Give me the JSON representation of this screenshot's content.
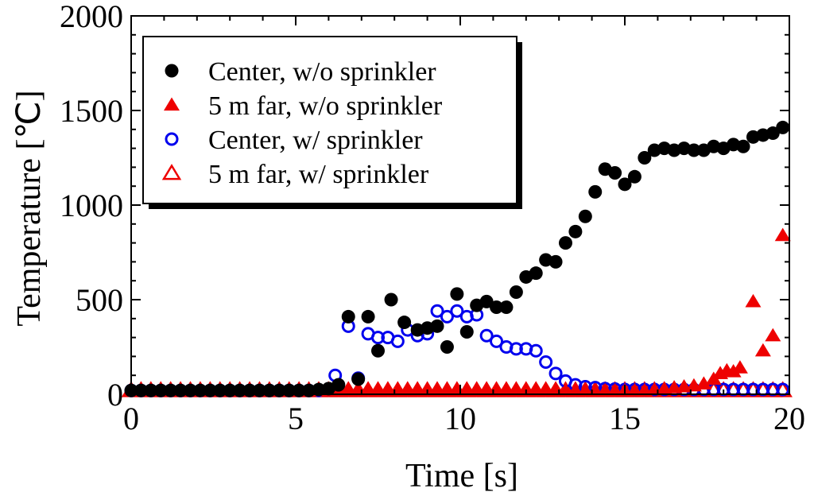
{
  "chart_data": {
    "type": "scatter",
    "xlabel": "Time [s]",
    "ylabel": "Temperature [℃]",
    "xlim": [
      0,
      20
    ],
    "ylim": [
      0,
      2000
    ],
    "x_ticks": [
      "0",
      "5",
      "10",
      "15",
      "20"
    ],
    "y_ticks": [
      "0",
      "500",
      "1000",
      "1500",
      "2000"
    ],
    "grid": false,
    "legend_position": "top-left",
    "series": [
      {
        "name": "Center, w/o sprinkler",
        "marker": "filled-circle",
        "color": "#000000",
        "points": [
          [
            0.0,
            20
          ],
          [
            0.3,
            20
          ],
          [
            0.6,
            20
          ],
          [
            0.9,
            20
          ],
          [
            1.2,
            20
          ],
          [
            1.5,
            20
          ],
          [
            1.8,
            20
          ],
          [
            2.1,
            20
          ],
          [
            2.4,
            20
          ],
          [
            2.7,
            20
          ],
          [
            3.0,
            20
          ],
          [
            3.3,
            20
          ],
          [
            3.6,
            20
          ],
          [
            3.9,
            20
          ],
          [
            4.2,
            20
          ],
          [
            4.5,
            20
          ],
          [
            4.8,
            20
          ],
          [
            5.1,
            20
          ],
          [
            5.4,
            20
          ],
          [
            5.7,
            25
          ],
          [
            6.0,
            30
          ],
          [
            6.3,
            50
          ],
          [
            6.6,
            410
          ],
          [
            6.9,
            80
          ],
          [
            7.2,
            410
          ],
          [
            7.5,
            230
          ],
          [
            7.9,
            500
          ],
          [
            8.3,
            380
          ],
          [
            8.7,
            340
          ],
          [
            9.0,
            350
          ],
          [
            9.3,
            360
          ],
          [
            9.6,
            250
          ],
          [
            9.9,
            530
          ],
          [
            10.2,
            330
          ],
          [
            10.5,
            470
          ],
          [
            10.8,
            490
          ],
          [
            11.1,
            460
          ],
          [
            11.4,
            460
          ],
          [
            11.7,
            540
          ],
          [
            12.0,
            620
          ],
          [
            12.3,
            640
          ],
          [
            12.6,
            710
          ],
          [
            12.9,
            700
          ],
          [
            13.2,
            800
          ],
          [
            13.5,
            860
          ],
          [
            13.8,
            940
          ],
          [
            14.1,
            1070
          ],
          [
            14.4,
            1190
          ],
          [
            14.7,
            1170
          ],
          [
            15.0,
            1110
          ],
          [
            15.3,
            1150
          ],
          [
            15.6,
            1250
          ],
          [
            15.9,
            1290
          ],
          [
            16.2,
            1300
          ],
          [
            16.5,
            1290
          ],
          [
            16.8,
            1300
          ],
          [
            17.1,
            1290
          ],
          [
            17.4,
            1290
          ],
          [
            17.7,
            1310
          ],
          [
            18.0,
            1300
          ],
          [
            18.3,
            1320
          ],
          [
            18.6,
            1310
          ],
          [
            18.9,
            1360
          ],
          [
            19.2,
            1370
          ],
          [
            19.5,
            1380
          ],
          [
            19.8,
            1410
          ]
        ]
      },
      {
        "name": "5 m far, w/o sprinkler",
        "marker": "filled-triangle",
        "color": "#ee0000",
        "points": [
          [
            0.0,
            20
          ],
          [
            0.3,
            20
          ],
          [
            0.6,
            20
          ],
          [
            0.9,
            20
          ],
          [
            1.2,
            20
          ],
          [
            1.5,
            20
          ],
          [
            1.8,
            20
          ],
          [
            2.1,
            20
          ],
          [
            2.4,
            20
          ],
          [
            2.7,
            20
          ],
          [
            3.0,
            20
          ],
          [
            3.3,
            20
          ],
          [
            3.6,
            20
          ],
          [
            3.9,
            20
          ],
          [
            4.2,
            20
          ],
          [
            4.5,
            20
          ],
          [
            4.8,
            20
          ],
          [
            5.1,
            20
          ],
          [
            5.4,
            20
          ],
          [
            5.7,
            20
          ],
          [
            6.0,
            20
          ],
          [
            6.3,
            20
          ],
          [
            6.6,
            20
          ],
          [
            6.9,
            20
          ],
          [
            7.2,
            20
          ],
          [
            7.5,
            20
          ],
          [
            7.8,
            20
          ],
          [
            8.1,
            20
          ],
          [
            8.4,
            20
          ],
          [
            8.7,
            20
          ],
          [
            9.0,
            20
          ],
          [
            9.3,
            20
          ],
          [
            9.6,
            20
          ],
          [
            9.9,
            20
          ],
          [
            10.2,
            20
          ],
          [
            10.5,
            20
          ],
          [
            10.8,
            20
          ],
          [
            11.1,
            20
          ],
          [
            11.4,
            20
          ],
          [
            11.7,
            20
          ],
          [
            12.0,
            20
          ],
          [
            12.3,
            20
          ],
          [
            12.6,
            20
          ],
          [
            12.9,
            20
          ],
          [
            13.2,
            20
          ],
          [
            13.5,
            20
          ],
          [
            13.8,
            20
          ],
          [
            14.1,
            20
          ],
          [
            14.4,
            20
          ],
          [
            14.7,
            20
          ],
          [
            15.0,
            20
          ],
          [
            15.3,
            20
          ],
          [
            15.6,
            20
          ],
          [
            15.9,
            25
          ],
          [
            16.2,
            30
          ],
          [
            16.5,
            35
          ],
          [
            16.8,
            40
          ],
          [
            17.1,
            45
          ],
          [
            17.4,
            55
          ],
          [
            17.7,
            80
          ],
          [
            17.9,
            110
          ],
          [
            18.1,
            125
          ],
          [
            18.3,
            120
          ],
          [
            18.5,
            140
          ],
          [
            18.9,
            490
          ],
          [
            19.2,
            230
          ],
          [
            19.5,
            310
          ],
          [
            19.8,
            840
          ]
        ]
      },
      {
        "name": "Center, w/ sprinkler",
        "marker": "open-circle",
        "color": "#0000ee",
        "points": [
          [
            0.0,
            20
          ],
          [
            0.3,
            20
          ],
          [
            0.6,
            20
          ],
          [
            0.9,
            20
          ],
          [
            1.2,
            20
          ],
          [
            1.5,
            20
          ],
          [
            1.8,
            20
          ],
          [
            2.1,
            20
          ],
          [
            2.4,
            20
          ],
          [
            2.7,
            20
          ],
          [
            3.0,
            20
          ],
          [
            3.3,
            20
          ],
          [
            3.6,
            20
          ],
          [
            3.9,
            20
          ],
          [
            4.2,
            20
          ],
          [
            4.5,
            20
          ],
          [
            4.8,
            20
          ],
          [
            5.1,
            20
          ],
          [
            5.4,
            20
          ],
          [
            5.7,
            20
          ],
          [
            6.0,
            25
          ],
          [
            6.2,
            100
          ],
          [
            6.6,
            360
          ],
          [
            6.9,
            85
          ],
          [
            7.2,
            320
          ],
          [
            7.5,
            300
          ],
          [
            7.8,
            300
          ],
          [
            8.1,
            280
          ],
          [
            8.4,
            340
          ],
          [
            8.7,
            310
          ],
          [
            9.0,
            320
          ],
          [
            9.3,
            440
          ],
          [
            9.6,
            410
          ],
          [
            9.9,
            440
          ],
          [
            10.2,
            410
          ],
          [
            10.5,
            420
          ],
          [
            10.8,
            310
          ],
          [
            11.1,
            280
          ],
          [
            11.4,
            250
          ],
          [
            11.7,
            240
          ],
          [
            12.0,
            240
          ],
          [
            12.3,
            230
          ],
          [
            12.6,
            170
          ],
          [
            12.9,
            110
          ],
          [
            13.2,
            70
          ],
          [
            13.5,
            50
          ],
          [
            13.8,
            40
          ],
          [
            14.1,
            35
          ],
          [
            14.4,
            30
          ],
          [
            14.7,
            28
          ],
          [
            15.0,
            25
          ],
          [
            15.3,
            25
          ],
          [
            15.6,
            25
          ],
          [
            15.9,
            25
          ],
          [
            16.2,
            25
          ],
          [
            16.5,
            25
          ],
          [
            16.8,
            25
          ],
          [
            17.1,
            25
          ],
          [
            17.4,
            25
          ],
          [
            17.7,
            25
          ],
          [
            18.0,
            25
          ],
          [
            18.3,
            25
          ],
          [
            18.6,
            25
          ],
          [
            18.9,
            25
          ],
          [
            19.2,
            25
          ],
          [
            19.5,
            25
          ],
          [
            19.8,
            25
          ]
        ]
      },
      {
        "name": "5 m far, w/ sprinkler",
        "marker": "open-triangle",
        "color": "#ee0000",
        "points": [
          [
            0.0,
            20
          ],
          [
            0.3,
            20
          ],
          [
            0.6,
            20
          ],
          [
            0.9,
            20
          ],
          [
            1.2,
            20
          ],
          [
            1.5,
            20
          ],
          [
            1.8,
            20
          ],
          [
            2.1,
            20
          ],
          [
            2.4,
            20
          ],
          [
            2.7,
            20
          ],
          [
            3.0,
            20
          ],
          [
            3.3,
            20
          ],
          [
            3.6,
            20
          ],
          [
            3.9,
            20
          ],
          [
            4.2,
            20
          ],
          [
            4.5,
            20
          ],
          [
            4.8,
            20
          ],
          [
            5.1,
            20
          ],
          [
            5.4,
            20
          ],
          [
            5.7,
            20
          ],
          [
            6.0,
            20
          ],
          [
            6.3,
            20
          ],
          [
            6.6,
            20
          ],
          [
            6.9,
            20
          ],
          [
            7.2,
            20
          ],
          [
            7.5,
            20
          ],
          [
            7.8,
            20
          ],
          [
            8.1,
            20
          ],
          [
            8.4,
            20
          ],
          [
            8.7,
            20
          ],
          [
            9.0,
            20
          ],
          [
            9.3,
            20
          ],
          [
            9.6,
            20
          ],
          [
            9.9,
            20
          ],
          [
            10.2,
            20
          ],
          [
            10.5,
            20
          ],
          [
            10.8,
            20
          ],
          [
            11.1,
            20
          ],
          [
            11.4,
            20
          ],
          [
            11.7,
            20
          ],
          [
            12.0,
            20
          ],
          [
            12.3,
            20
          ],
          [
            12.6,
            20
          ],
          [
            12.9,
            20
          ],
          [
            13.2,
            20
          ],
          [
            13.5,
            20
          ],
          [
            13.8,
            20
          ],
          [
            14.1,
            20
          ],
          [
            14.4,
            20
          ],
          [
            14.7,
            20
          ],
          [
            15.0,
            20
          ],
          [
            15.3,
            20
          ],
          [
            15.6,
            20
          ],
          [
            15.9,
            20
          ],
          [
            16.2,
            20
          ],
          [
            16.5,
            20
          ],
          [
            16.8,
            20
          ],
          [
            17.1,
            20
          ],
          [
            17.4,
            20
          ],
          [
            17.7,
            20
          ],
          [
            18.0,
            20
          ],
          [
            18.3,
            20
          ],
          [
            18.6,
            20
          ],
          [
            18.9,
            20
          ],
          [
            19.2,
            20
          ],
          [
            19.5,
            20
          ],
          [
            19.8,
            20
          ]
        ]
      }
    ]
  }
}
